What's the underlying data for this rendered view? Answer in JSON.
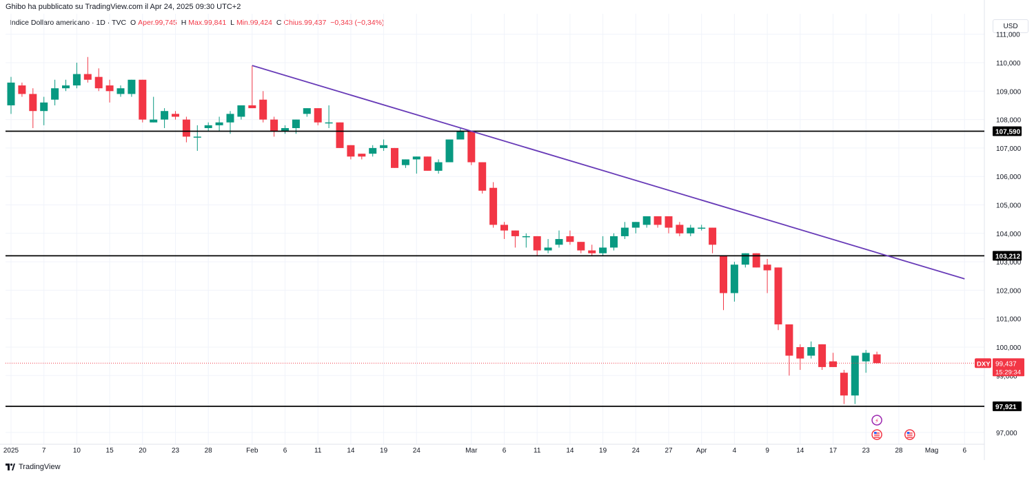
{
  "header": {
    "published": "Ghibo ha pubblicato su TradingView.com il Apr 24, 2025 09:30 UTC+2",
    "symbol": "Indice Dollaro americano · 1D · TVC",
    "o_label": "O",
    "o_val": "Aper.99,745",
    "h_label": "H",
    "h_val": "Max.99,841",
    "l_label": "L",
    "l_val": "Min.99,424",
    "c_label": "C",
    "c_val": "Chius.99,437",
    "chg": "−0,343 (−0,34%)"
  },
  "currency_button": "USD",
  "footer": {
    "brand": "TradingView"
  },
  "colors": {
    "up": "#089981",
    "down": "#f23645",
    "trend": "#673ab7",
    "level": "#000000",
    "grid": "#f0f3fa"
  },
  "chart_data": {
    "type": "candlestick",
    "ylim": [
      96.5,
      111.5
    ],
    "y_ticks": [
      "111,000",
      "110,000",
      "109,000",
      "108,000",
      "107,000",
      "106,000",
      "105,000",
      "104,000",
      "103,000",
      "102,000",
      "101,000",
      "100,000",
      "99,000",
      "97,000"
    ],
    "x_ticks": [
      "2025",
      "7",
      "10",
      "15",
      "20",
      "23",
      "28",
      "Feb",
      "6",
      "11",
      "14",
      "19",
      "24",
      "Mar",
      "6",
      "11",
      "14",
      "19",
      "24",
      "27",
      "Apr",
      "4",
      "9",
      "14",
      "17",
      "23",
      "28",
      "Mag",
      "6"
    ],
    "candles": [
      {
        "o": 108.5,
        "h": 109.5,
        "l": 108.2,
        "c": 109.3
      },
      {
        "o": 109.2,
        "h": 109.3,
        "l": 108.8,
        "c": 108.9
      },
      {
        "o": 108.9,
        "h": 109.1,
        "l": 107.7,
        "c": 108.3
      },
      {
        "o": 108.3,
        "h": 108.8,
        "l": 107.8,
        "c": 108.6
      },
      {
        "o": 108.7,
        "h": 109.4,
        "l": 108.5,
        "c": 109.1
      },
      {
        "o": 109.1,
        "h": 109.4,
        "l": 109.0,
        "c": 109.2
      },
      {
        "o": 109.2,
        "h": 110.0,
        "l": 109.1,
        "c": 109.6
      },
      {
        "o": 109.6,
        "h": 110.2,
        "l": 109.3,
        "c": 109.4
      },
      {
        "o": 109.5,
        "h": 109.8,
        "l": 109.0,
        "c": 109.1
      },
      {
        "o": 109.2,
        "h": 109.4,
        "l": 108.6,
        "c": 109.0
      },
      {
        "o": 108.9,
        "h": 109.2,
        "l": 108.8,
        "c": 109.1
      },
      {
        "o": 108.9,
        "h": 109.4,
        "l": 108.8,
        "c": 109.4
      },
      {
        "o": 109.4,
        "h": 109.4,
        "l": 107.9,
        "c": 108.0
      },
      {
        "o": 107.9,
        "h": 108.8,
        "l": 107.9,
        "c": 108.0
      },
      {
        "o": 108.0,
        "h": 108.4,
        "l": 107.7,
        "c": 108.3
      },
      {
        "o": 108.2,
        "h": 108.3,
        "l": 108.0,
        "c": 108.1
      },
      {
        "o": 108.0,
        "h": 108.1,
        "l": 107.2,
        "c": 107.4
      },
      {
        "o": 107.4,
        "h": 107.8,
        "l": 106.9,
        "c": 107.4
      },
      {
        "o": 107.7,
        "h": 107.9,
        "l": 107.6,
        "c": 107.8
      },
      {
        "o": 107.8,
        "h": 108.1,
        "l": 107.6,
        "c": 107.9
      },
      {
        "o": 107.9,
        "h": 108.3,
        "l": 107.5,
        "c": 108.2
      },
      {
        "o": 108.1,
        "h": 108.5,
        "l": 108.0,
        "c": 108.5
      },
      {
        "o": 108.5,
        "h": 109.9,
        "l": 108.4,
        "c": 108.4
      },
      {
        "o": 108.7,
        "h": 109.0,
        "l": 107.9,
        "c": 108.0
      },
      {
        "o": 108.0,
        "h": 108.1,
        "l": 107.4,
        "c": 107.6
      },
      {
        "o": 107.6,
        "h": 107.8,
        "l": 107.5,
        "c": 107.7
      },
      {
        "o": 107.7,
        "h": 108.0,
        "l": 107.5,
        "c": 108.0
      },
      {
        "o": 108.2,
        "h": 108.4,
        "l": 108.1,
        "c": 108.4
      },
      {
        "o": 108.4,
        "h": 108.4,
        "l": 107.8,
        "c": 107.9
      },
      {
        "o": 107.9,
        "h": 108.5,
        "l": 107.7,
        "c": 107.9
      },
      {
        "o": 107.9,
        "h": 107.9,
        "l": 107.0,
        "c": 107.0
      },
      {
        "o": 107.1,
        "h": 107.1,
        "l": 106.6,
        "c": 106.7
      },
      {
        "o": 106.8,
        "h": 106.8,
        "l": 106.6,
        "c": 106.7
      },
      {
        "o": 106.8,
        "h": 107.1,
        "l": 106.7,
        "c": 107.0
      },
      {
        "o": 107.0,
        "h": 107.3,
        "l": 106.9,
        "c": 107.1
      },
      {
        "o": 107.0,
        "h": 107.0,
        "l": 106.3,
        "c": 106.3
      },
      {
        "o": 106.4,
        "h": 106.6,
        "l": 106.3,
        "c": 106.6
      },
      {
        "o": 106.6,
        "h": 106.7,
        "l": 106.1,
        "c": 106.7
      },
      {
        "o": 106.7,
        "h": 106.7,
        "l": 106.2,
        "c": 106.2
      },
      {
        "o": 106.2,
        "h": 106.6,
        "l": 106.1,
        "c": 106.5
      },
      {
        "o": 106.5,
        "h": 107.3,
        "l": 106.5,
        "c": 107.3
      },
      {
        "o": 107.3,
        "h": 107.7,
        "l": 107.3,
        "c": 107.6
      },
      {
        "o": 107.6,
        "h": 107.6,
        "l": 106.4,
        "c": 106.5
      },
      {
        "o": 106.5,
        "h": 106.5,
        "l": 105.4,
        "c": 105.5
      },
      {
        "o": 105.6,
        "h": 105.8,
        "l": 104.2,
        "c": 104.3
      },
      {
        "o": 104.3,
        "h": 104.4,
        "l": 103.8,
        "c": 104.1
      },
      {
        "o": 104.1,
        "h": 104.1,
        "l": 103.5,
        "c": 103.9
      },
      {
        "o": 103.9,
        "h": 104.0,
        "l": 103.5,
        "c": 103.9
      },
      {
        "o": 103.9,
        "h": 103.9,
        "l": 103.2,
        "c": 103.4
      },
      {
        "o": 103.4,
        "h": 103.8,
        "l": 103.3,
        "c": 103.5
      },
      {
        "o": 103.6,
        "h": 104.1,
        "l": 103.5,
        "c": 103.8
      },
      {
        "o": 103.9,
        "h": 104.1,
        "l": 103.6,
        "c": 103.7
      },
      {
        "o": 103.7,
        "h": 103.7,
        "l": 103.3,
        "c": 103.4
      },
      {
        "o": 103.4,
        "h": 103.6,
        "l": 103.2,
        "c": 103.3
      },
      {
        "o": 103.3,
        "h": 103.9,
        "l": 103.2,
        "c": 103.5
      },
      {
        "o": 103.5,
        "h": 104.0,
        "l": 103.4,
        "c": 103.9
      },
      {
        "o": 103.9,
        "h": 104.4,
        "l": 103.8,
        "c": 104.2
      },
      {
        "o": 104.2,
        "h": 104.4,
        "l": 104.0,
        "c": 104.4
      },
      {
        "o": 104.3,
        "h": 104.6,
        "l": 104.2,
        "c": 104.6
      },
      {
        "o": 104.6,
        "h": 104.6,
        "l": 104.2,
        "c": 104.3
      },
      {
        "o": 104.6,
        "h": 104.6,
        "l": 104.0,
        "c": 104.2
      },
      {
        "o": 104.3,
        "h": 104.4,
        "l": 103.9,
        "c": 104.0
      },
      {
        "o": 104.0,
        "h": 104.3,
        "l": 103.9,
        "c": 104.2
      },
      {
        "o": 104.2,
        "h": 104.3,
        "l": 104.1,
        "c": 104.2
      },
      {
        "o": 104.2,
        "h": 104.2,
        "l": 103.3,
        "c": 103.6
      },
      {
        "o": 103.2,
        "h": 103.2,
        "l": 101.3,
        "c": 101.9
      },
      {
        "o": 101.9,
        "h": 103.0,
        "l": 101.6,
        "c": 102.9
      },
      {
        "o": 102.9,
        "h": 103.3,
        "l": 102.8,
        "c": 103.3
      },
      {
        "o": 103.3,
        "h": 103.3,
        "l": 102.8,
        "c": 102.8
      },
      {
        "o": 102.9,
        "h": 103.1,
        "l": 101.9,
        "c": 102.7
      },
      {
        "o": 102.8,
        "h": 102.8,
        "l": 100.6,
        "c": 100.8
      },
      {
        "o": 100.8,
        "h": 100.8,
        "l": 99.0,
        "c": 99.7
      },
      {
        "o": 100.0,
        "h": 100.1,
        "l": 99.2,
        "c": 99.6
      },
      {
        "o": 99.7,
        "h": 100.2,
        "l": 99.6,
        "c": 100.0
      },
      {
        "o": 100.1,
        "h": 100.1,
        "l": 99.2,
        "c": 99.3
      },
      {
        "o": 99.5,
        "h": 99.8,
        "l": 99.3,
        "c": 99.3
      },
      {
        "o": 99.1,
        "h": 99.2,
        "l": 98.0,
        "c": 98.3
      },
      {
        "o": 98.3,
        "h": 99.7,
        "l": 98.0,
        "c": 99.7
      },
      {
        "o": 99.5,
        "h": 99.9,
        "l": 99.1,
        "c": 99.8
      },
      {
        "o": 99.745,
        "h": 99.841,
        "l": 99.424,
        "c": 99.437
      }
    ],
    "trendline": {
      "start": [
        22,
        109.9
      ],
      "end": [
        87,
        102.4
      ]
    },
    "levels": [
      {
        "price": 107.59,
        "label": "107,590"
      },
      {
        "price": 103.212,
        "label": "103,212"
      },
      {
        "price": 97.921,
        "label": "97,921"
      }
    ],
    "last_price": {
      "symbol": "DXY",
      "price": 99.437,
      "label": "99,437",
      "countdown": "15:29:34"
    }
  }
}
